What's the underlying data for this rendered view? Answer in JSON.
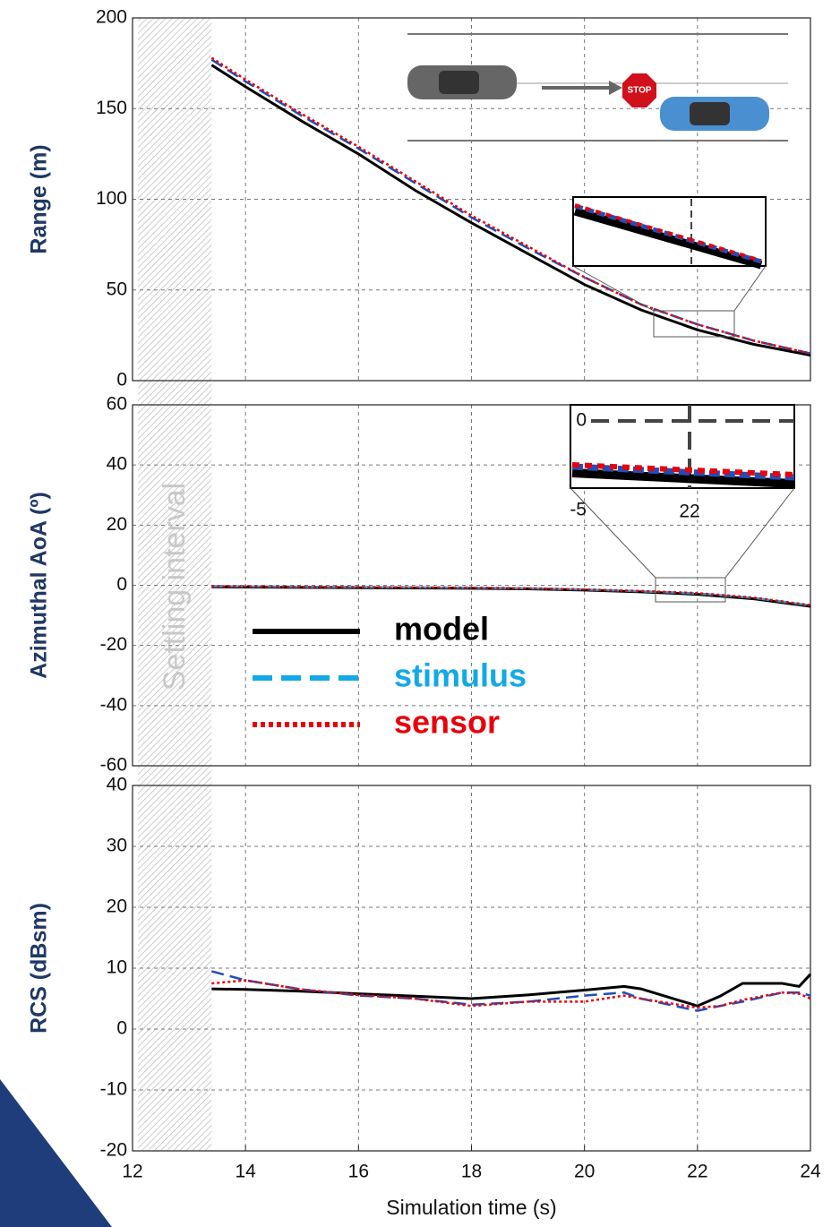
{
  "settling": {
    "x": [
      12,
      13.4
    ],
    "label": "Settling interval"
  },
  "chart_data": [
    {
      "type": "line",
      "ylabel": "Range (m)",
      "xlim": [
        12,
        24
      ],
      "ylim": [
        0,
        200
      ],
      "yticks": [
        0,
        50,
        100,
        150,
        200
      ],
      "grid": true,
      "x": [
        13.4,
        14,
        15,
        16,
        17,
        18,
        19,
        20,
        21,
        22,
        23,
        24
      ],
      "series": [
        {
          "color": "#000000",
          "style": "solid",
          "values": [
            174,
            162,
            143,
            125,
            105,
            87,
            70,
            53,
            39,
            28,
            20,
            14
          ]
        },
        {
          "color": "#1f4fb8",
          "style": "dashed",
          "values": [
            177,
            165,
            146,
            128,
            109,
            90,
            73,
            57,
            42,
            31,
            22,
            15
          ]
        },
        {
          "color": "#e8000b",
          "style": "dotted",
          "values": [
            178,
            166,
            147,
            129,
            110,
            91,
            74,
            57,
            42,
            31,
            22,
            15
          ]
        }
      ]
    },
    {
      "type": "line",
      "ylabel": "Azimuthal AoA (º)",
      "xlim": [
        12,
        24
      ],
      "ylim": [
        -60,
        60
      ],
      "yticks": [
        -60,
        -40,
        -20,
        0,
        20,
        40,
        60
      ],
      "grid": true,
      "x": [
        13.4,
        14,
        15,
        16,
        17,
        18,
        19,
        20,
        21,
        22,
        23,
        24
      ],
      "inset": {
        "xticks": [
          22
        ],
        "yticks": [
          -5,
          0
        ]
      },
      "series": [
        {
          "name": "model",
          "color": "#000000",
          "style": "solid",
          "values": [
            -0.5,
            -0.6,
            -0.7,
            -0.8,
            -0.9,
            -1,
            -1.2,
            -1.6,
            -2.2,
            -3,
            -4.5,
            -7
          ]
        },
        {
          "name": "stimulus",
          "color": "#12a9e6",
          "style": "dashed",
          "values": [
            -0.3,
            -0.4,
            -0.5,
            -0.6,
            -0.7,
            -0.8,
            -1,
            -1.4,
            -2,
            -2.7,
            -4.2,
            -6.7
          ]
        },
        {
          "name": "sensor",
          "color": "#e8000b",
          "style": "dotted",
          "values": [
            -0.3,
            -0.4,
            -0.5,
            -0.6,
            -0.7,
            -0.8,
            -1,
            -1.4,
            -1.9,
            -2.6,
            -4.1,
            -6.6
          ]
        }
      ]
    },
    {
      "type": "line",
      "ylabel": "RCS (dBsm)",
      "xlabel": "Simulation time (s)",
      "xlim": [
        12,
        24
      ],
      "xticks": [
        12,
        14,
        16,
        18,
        20,
        22,
        24
      ],
      "ylim": [
        -20,
        40
      ],
      "yticks": [
        -20,
        -10,
        0,
        10,
        20,
        30,
        40
      ],
      "grid": true,
      "x": [
        13.4,
        14,
        15,
        16,
        17,
        18,
        19,
        20,
        20.7,
        21,
        22,
        22.4,
        22.8,
        23.5,
        23.8,
        24
      ],
      "series": [
        {
          "color": "#000000",
          "style": "solid",
          "values": [
            6.6,
            6.5,
            6.2,
            5.8,
            5.4,
            5.0,
            5.6,
            6.4,
            7.0,
            6.6,
            3.8,
            5.4,
            7.5,
            7.5,
            7.0,
            9.0
          ]
        },
        {
          "color": "#1f4fb8",
          "style": "dashed",
          "values": [
            9.5,
            8,
            6.5,
            5.5,
            5,
            4,
            4.5,
            5.5,
            6,
            5,
            3,
            3.8,
            4.5,
            6,
            6,
            5.5
          ]
        },
        {
          "color": "#e8000b",
          "style": "dotted",
          "values": [
            7.5,
            8,
            6.5,
            5.6,
            5,
            3.8,
            4.5,
            4.5,
            5.5,
            5,
            3.5,
            3.8,
            4.8,
            6,
            5.8,
            5
          ]
        }
      ]
    }
  ]
}
